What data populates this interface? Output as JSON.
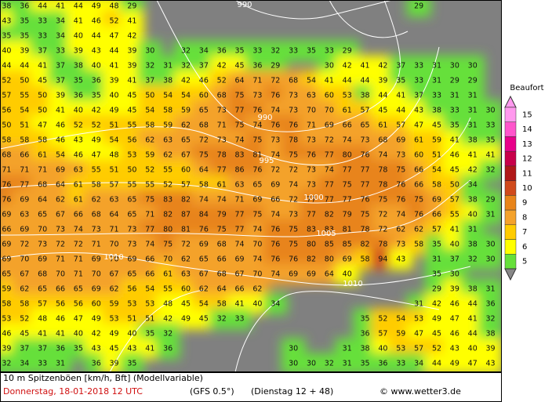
{
  "map": {
    "grid": [
      [
        38,
        36,
        44,
        41,
        44,
        49,
        48,
        29,
        null,
        null,
        null,
        null,
        null,
        null,
        null,
        null,
        null,
        null,
        null,
        null,
        null,
        null,
        null,
        29,
        null,
        null,
        null,
        null
      ],
      [
        43,
        35,
        33,
        34,
        41,
        46,
        52,
        41,
        null,
        null,
        null,
        null,
        null,
        null,
        null,
        null,
        null,
        null,
        null,
        null,
        null,
        null,
        null,
        null,
        null,
        null,
        null,
        null
      ],
      [
        35,
        35,
        33,
        34,
        40,
        44,
        47,
        42,
        null,
        null,
        null,
        null,
        null,
        null,
        null,
        null,
        null,
        null,
        null,
        null,
        null,
        null,
        null,
        null,
        null,
        null,
        null,
        null
      ],
      [
        40,
        39,
        37,
        33,
        39,
        43,
        44,
        39,
        30,
        null,
        32,
        34,
        36,
        35,
        33,
        32,
        33,
        35,
        33,
        29,
        null,
        null,
        null,
        null,
        null,
        null,
        null,
        null
      ],
      [
        44,
        44,
        41,
        37,
        38,
        40,
        41,
        39,
        32,
        31,
        32,
        37,
        42,
        45,
        36,
        29,
        null,
        null,
        30,
        42,
        41,
        42,
        37,
        33,
        31,
        30,
        30,
        null
      ],
      [
        52,
        50,
        45,
        37,
        35,
        36,
        39,
        41,
        37,
        38,
        42,
        46,
        52,
        64,
        71,
        72,
        68,
        54,
        41,
        44,
        44,
        39,
        35,
        33,
        31,
        29,
        29,
        null
      ],
      [
        57,
        55,
        50,
        39,
        36,
        35,
        40,
        45,
        50,
        54,
        54,
        60,
        68,
        75,
        73,
        76,
        73,
        63,
        60,
        53,
        38,
        44,
        41,
        37,
        33,
        31,
        31,
        null
      ],
      [
        56,
        54,
        50,
        41,
        40,
        42,
        49,
        45,
        54,
        58,
        59,
        65,
        73,
        77,
        76,
        74,
        73,
        70,
        70,
        61,
        57,
        45,
        44,
        43,
        38,
        33,
        31,
        30
      ],
      [
        50,
        51,
        47,
        46,
        52,
        52,
        51,
        55,
        58,
        59,
        62,
        68,
        71,
        75,
        74,
        76,
        76,
        71,
        69,
        66,
        65,
        61,
        57,
        47,
        45,
        35,
        31,
        33
      ],
      [
        58,
        58,
        58,
        46,
        43,
        49,
        54,
        56,
        62,
        63,
        65,
        72,
        73,
        74,
        75,
        73,
        78,
        73,
        72,
        74,
        73,
        68,
        69,
        61,
        59,
        41,
        38,
        35
      ],
      [
        68,
        66,
        61,
        54,
        46,
        47,
        48,
        53,
        59,
        62,
        67,
        75,
        78,
        83,
        81,
        74,
        75,
        76,
        77,
        80,
        76,
        74,
        73,
        60,
        51,
        46,
        41,
        41
      ],
      [
        71,
        71,
        71,
        69,
        63,
        55,
        51,
        50,
        52,
        55,
        60,
        64,
        77,
        86,
        76,
        72,
        72,
        73,
        74,
        77,
        77,
        78,
        75,
        66,
        54,
        45,
        42,
        32
      ],
      [
        76,
        77,
        68,
        64,
        61,
        58,
        57,
        55,
        55,
        52,
        57,
        58,
        61,
        63,
        65,
        69,
        74,
        73,
        77,
        75,
        77,
        78,
        76,
        66,
        58,
        50,
        34,
        null
      ],
      [
        76,
        69,
        64,
        62,
        61,
        62,
        63,
        65,
        75,
        83,
        82,
        74,
        74,
        71,
        69,
        66,
        72,
        77,
        77,
        77,
        76,
        75,
        76,
        75,
        69,
        57,
        38,
        29
      ],
      [
        69,
        63,
        65,
        67,
        66,
        68,
        64,
        65,
        71,
        82,
        87,
        84,
        79,
        77,
        75,
        74,
        73,
        77,
        82,
        79,
        75,
        72,
        74,
        76,
        66,
        55,
        40,
        31
      ],
      [
        66,
        69,
        70,
        73,
        74,
        73,
        71,
        73,
        77,
        80,
        81,
        76,
        75,
        77,
        74,
        76,
        75,
        83,
        83,
        81,
        78,
        72,
        62,
        62,
        57,
        41,
        31,
        null
      ],
      [
        69,
        72,
        73,
        72,
        72,
        71,
        70,
        73,
        74,
        75,
        72,
        69,
        68,
        74,
        70,
        76,
        75,
        80,
        85,
        85,
        82,
        78,
        73,
        58,
        35,
        40,
        38,
        30
      ],
      [
        69,
        70,
        69,
        71,
        71,
        69,
        70,
        69,
        66,
        70,
        62,
        65,
        66,
        69,
        74,
        76,
        76,
        82,
        80,
        69,
        58,
        94,
        43,
        null,
        31,
        37,
        32,
        30
      ],
      [
        65,
        67,
        68,
        70,
        71,
        70,
        67,
        65,
        66,
        61,
        63,
        67,
        68,
        67,
        70,
        74,
        69,
        69,
        64,
        40,
        null,
        null,
        null,
        null,
        35,
        30,
        null,
        null
      ],
      [
        59,
        62,
        65,
        66,
        65,
        69,
        62,
        56,
        54,
        55,
        60,
        62,
        64,
        66,
        62,
        null,
        null,
        null,
        null,
        null,
        null,
        null,
        null,
        null,
        29,
        39,
        38,
        31
      ],
      [
        58,
        58,
        57,
        56,
        56,
        60,
        59,
        53,
        53,
        48,
        45,
        54,
        58,
        41,
        40,
        34,
        null,
        null,
        null,
        null,
        null,
        null,
        null,
        31,
        42,
        46,
        44,
        36
      ],
      [
        53,
        52,
        48,
        46,
        47,
        49,
        53,
        51,
        51,
        42,
        49,
        45,
        32,
        33,
        null,
        null,
        null,
        null,
        null,
        null,
        35,
        52,
        54,
        53,
        49,
        47,
        41,
        32
      ],
      [
        46,
        45,
        41,
        41,
        40,
        42,
        49,
        40,
        35,
        32,
        null,
        null,
        null,
        null,
        null,
        null,
        null,
        null,
        null,
        null,
        36,
        57,
        59,
        47,
        45,
        46,
        44,
        38
      ],
      [
        39,
        37,
        37,
        36,
        35,
        43,
        45,
        43,
        41,
        36,
        null,
        null,
        null,
        null,
        null,
        null,
        30,
        null,
        null,
        31,
        38,
        40,
        53,
        57,
        52,
        43,
        40,
        39
      ],
      [
        32,
        34,
        33,
        31,
        null,
        36,
        39,
        35,
        null,
        null,
        null,
        null,
        null,
        null,
        null,
        null,
        30,
        30,
        32,
        31,
        35,
        36,
        33,
        34,
        44,
        49,
        47,
        43
      ]
    ],
    "isobars": [
      "990",
      "990",
      "995",
      "1000",
      "1005",
      "1010",
      "1010"
    ],
    "legend": {
      "title": "Beaufort",
      "levels": [
        {
          "level": 15,
          "color": "#ff99ee"
        },
        {
          "level": 14,
          "color": "#ff55cc"
        },
        {
          "level": 13,
          "color": "#e8008a"
        },
        {
          "level": 12,
          "color": "#c8004a"
        },
        {
          "level": 11,
          "color": "#b01818"
        },
        {
          "level": 10,
          "color": "#d04a1c"
        },
        {
          "level": 9,
          "color": "#e8841a"
        },
        {
          "level": 8,
          "color": "#f4a22c"
        },
        {
          "level": 7,
          "color": "#ffcc00"
        },
        {
          "level": 6,
          "color": "#ffff00"
        },
        {
          "level": 5,
          "color": "#66e03a"
        }
      ]
    },
    "footer": {
      "line1": "10 m Spitzenböen [km/h, Bft] (Modellvariable)",
      "date": "Donnerstag, 18-01-2018  12 UTC",
      "model": "(GFS 0.5°)",
      "run": "(Dienstag 12 + 48)",
      "credit": "© www.wetter3.de"
    }
  }
}
